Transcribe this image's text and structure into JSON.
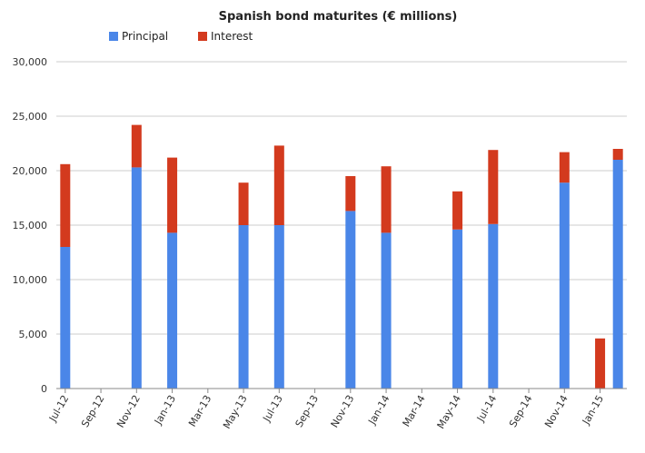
{
  "chart_data": {
    "type": "bar",
    "stacked": true,
    "title": "Spanish bond maturites (€ millions)",
    "xlabel": "",
    "ylabel": "",
    "ylim": [
      0,
      30000
    ],
    "yticks": [
      0,
      5000,
      10000,
      15000,
      20000,
      25000,
      30000
    ],
    "ytick_labels": [
      "0",
      "5,000",
      "10,000",
      "15,000",
      "20,000",
      "25,000",
      "30,000"
    ],
    "grid": true,
    "legend_position": "top",
    "categories": [
      "Jul-12",
      "Aug-12",
      "Sep-12",
      "Oct-12",
      "Nov-12",
      "Dec-12",
      "Jan-13",
      "Feb-13",
      "Mar-13",
      "Apr-13",
      "May-13",
      "Jun-13",
      "Jul-13",
      "Aug-13",
      "Sep-13",
      "Oct-13",
      "Nov-13",
      "Dec-13",
      "Jan-14",
      "Feb-14",
      "Mar-14",
      "Apr-14",
      "May-14",
      "Jun-14",
      "Jul-14",
      "Aug-14",
      "Sep-14",
      "Oct-14",
      "Nov-14",
      "Dec-14",
      "Jan-15",
      "Feb-15"
    ],
    "x_tick_labels": [
      "Jul-12",
      "Sep-12",
      "Nov-12",
      "Jan-13",
      "Mar-13",
      "May-13",
      "Jul-13",
      "Sep-13",
      "Nov-13",
      "Jan-14",
      "Mar-14",
      "May-14",
      "Jul-14",
      "Sep-14",
      "Nov-14",
      "Jan-15"
    ],
    "series": [
      {
        "name": "Principal",
        "color": "#4a86e8",
        "values": [
          13000,
          0,
          0,
          0,
          20300,
          0,
          14300,
          0,
          0,
          0,
          15000,
          0,
          15000,
          0,
          0,
          0,
          16300,
          0,
          14300,
          0,
          0,
          0,
          14600,
          0,
          15100,
          0,
          0,
          0,
          18900,
          0,
          0,
          21000
        ]
      },
      {
        "name": "Interest",
        "color": "#d33a1e",
        "values": [
          7600,
          0,
          0,
          0,
          3900,
          0,
          6900,
          0,
          0,
          0,
          3900,
          0,
          7300,
          0,
          0,
          0,
          3200,
          0,
          6100,
          0,
          0,
          0,
          3500,
          0,
          6800,
          0,
          0,
          0,
          2800,
          0,
          4600,
          1000
        ]
      }
    ]
  }
}
